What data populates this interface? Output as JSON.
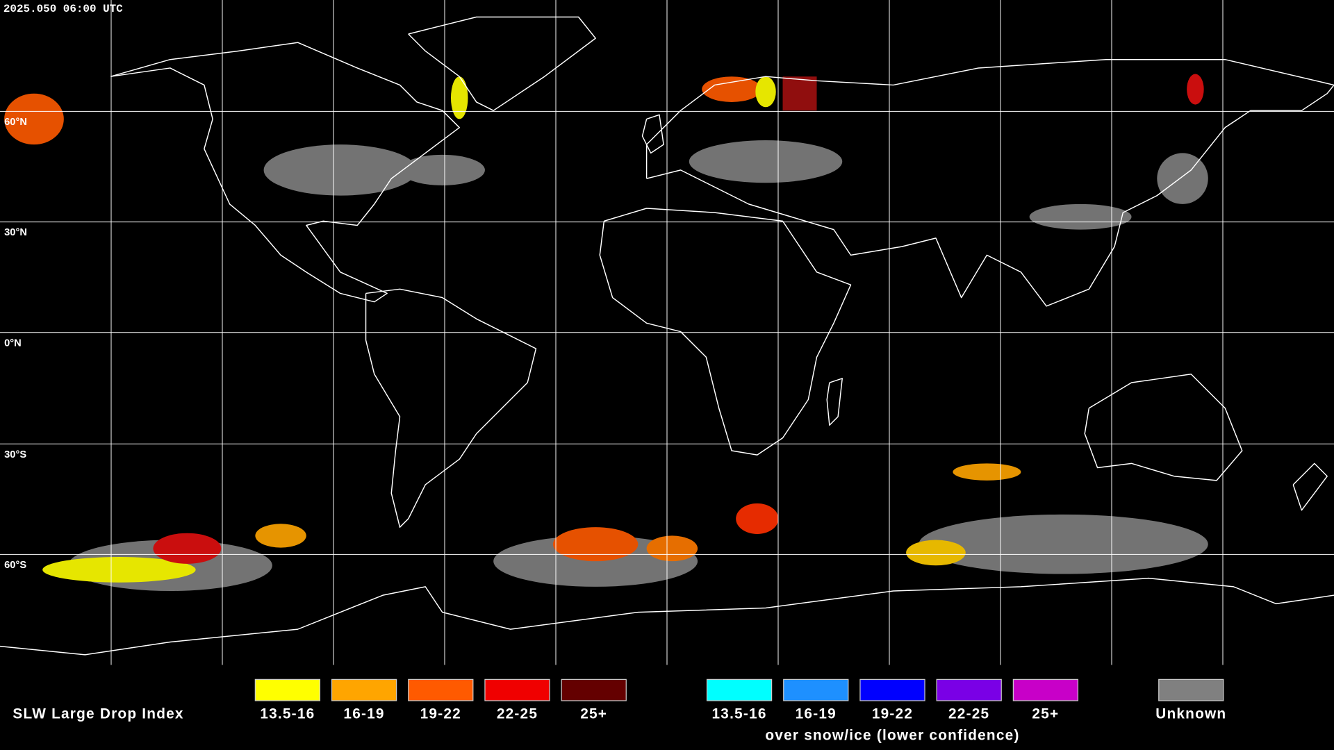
{
  "header": {
    "timestamp": "2025.050 06:00 UTC"
  },
  "map": {
    "latitude_labels": [
      "60°N",
      "30°N",
      "0°N",
      "30°S",
      "60°S"
    ]
  },
  "legend": {
    "title": "SLW Large Drop Index",
    "groups": [
      {
        "items": [
          {
            "label": "13.5-16",
            "color": "#ffff00"
          },
          {
            "label": "16-19",
            "color": "#ffa500"
          },
          {
            "label": "19-22",
            "color": "#ff5a00"
          },
          {
            "label": "22-25",
            "color": "#f00000"
          },
          {
            "label": "25+",
            "color": "#640000"
          }
        ]
      },
      {
        "items": [
          {
            "label": "13.5-16",
            "color": "#00ffff"
          },
          {
            "label": "16-19",
            "color": "#1e90ff"
          },
          {
            "label": "19-22",
            "color": "#0000ff"
          },
          {
            "label": "22-25",
            "color": "#7a00e6"
          },
          {
            "label": "25+",
            "color": "#c800c8"
          }
        ],
        "caption": "over snow/ice (lower confidence)"
      },
      {
        "items": [
          {
            "label": "Unknown",
            "color": "#808080"
          }
        ]
      }
    ]
  }
}
